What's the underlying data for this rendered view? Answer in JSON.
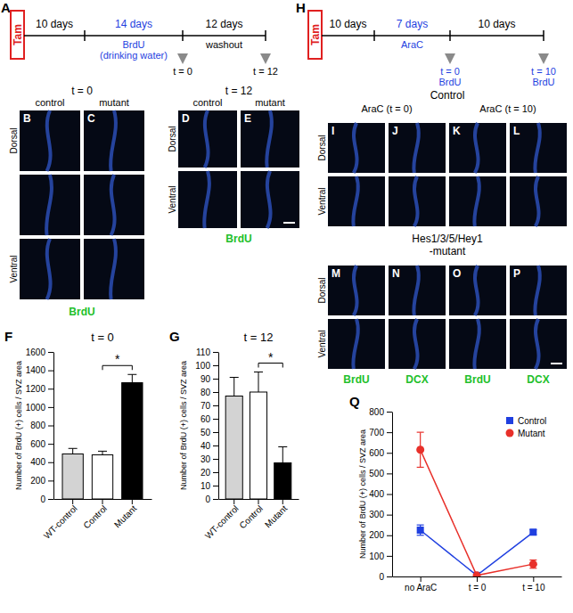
{
  "timelines": [
    {
      "label": "A",
      "start": "Tam",
      "segments": [
        {
          "text": "10 days",
          "color": "#000000"
        },
        {
          "text": "14 days",
          "color": "#1f3fe0",
          "lines": [
            "BrdU",
            "(drinking water)"
          ]
        },
        {
          "text": "12 days",
          "color": "#000000",
          "lines": [
            "washout"
          ]
        }
      ],
      "markers": [
        {
          "lines": [
            "t = 0"
          ],
          "color": "#000000"
        },
        {
          "lines": [
            "t = 12"
          ],
          "color": "#000000"
        }
      ]
    },
    {
      "label": "H",
      "start": "Tam",
      "segments": [
        {
          "text": "10 days",
          "color": "#000000"
        },
        {
          "text": "7 days",
          "color": "#1f3fe0",
          "lines": [
            "AraC"
          ]
        },
        {
          "text": "10 days",
          "color": "#000000"
        }
      ],
      "markers": [
        {
          "lines": [
            "t = 0",
            "BrdU"
          ],
          "color": "#1f3fe0"
        },
        {
          "lines": [
            "t = 10",
            "BrdU"
          ],
          "color": "#1f3fe0"
        }
      ]
    }
  ],
  "image_groups": [
    {
      "title": "t = 0",
      "columns": [
        "control",
        "mutant"
      ],
      "letters": [
        "B",
        "C"
      ],
      "rows": [
        "Dorsal",
        null,
        "Ventral"
      ],
      "stain": "BrdU"
    },
    {
      "title": "t = 12",
      "columns": [
        "control",
        "mutant"
      ],
      "letters": [
        "D",
        "E"
      ],
      "rows": [
        "Dorsal",
        "Ventral"
      ],
      "stain": "BrdU"
    },
    {
      "title": "Control",
      "subtitles": [
        "AraC (t = 0)",
        "AraC (t = 10)"
      ],
      "letters": [
        "I",
        "J",
        "K",
        "L"
      ],
      "rows": [
        "Dorsal",
        "Ventral"
      ]
    },
    {
      "title_lines": [
        "Hes1/3/5/Hey1",
        "-mutant"
      ],
      "letters": [
        "M",
        "N",
        "O",
        "P"
      ],
      "rows": [
        "Dorsal",
        "Ventral"
      ],
      "stains": [
        "BrdU",
        "DCX",
        "BrdU",
        "DCX"
      ]
    }
  ],
  "chart_data": [
    {
      "type": "bar",
      "label": "F",
      "title": "t = 0",
      "y_label": "Number of BrdU (+) cells / SVZ area",
      "categories": [
        "WT-control",
        "Control",
        "Mutant"
      ],
      "values": [
        490,
        480,
        1265
      ],
      "errors": [
        60,
        40,
        90
      ],
      "colors": [
        "#d3d3d3",
        "#ffffff",
        "#000000"
      ],
      "ylim": [
        0,
        1600
      ],
      "yticks": [
        0,
        200,
        400,
        600,
        800,
        1000,
        1200,
        1400,
        1600
      ],
      "annotations": [
        {
          "text": "*",
          "between": [
            "Control",
            "Mutant"
          ]
        }
      ]
    },
    {
      "type": "bar",
      "label": "G",
      "title": "t = 12",
      "y_label": "Number of BrdU (+) cells / SVZ area",
      "categories": [
        "WT-control",
        "Control",
        "Mutant"
      ],
      "values": [
        77,
        80,
        27
      ],
      "errors": [
        14,
        15,
        12
      ],
      "colors": [
        "#d3d3d3",
        "#ffffff",
        "#000000"
      ],
      "ylim": [
        0,
        110
      ],
      "yticks": [
        0,
        10,
        20,
        30,
        40,
        50,
        60,
        70,
        80,
        90,
        100,
        110
      ],
      "annotations": [
        {
          "text": "*",
          "between": [
            "Control",
            "Mutant"
          ]
        }
      ]
    },
    {
      "type": "line",
      "label": "Q",
      "y_label": "Number of BrdU (+) cells / SVZ area",
      "categories": [
        "no AraC",
        "t = 0",
        "t = 10"
      ],
      "series": [
        {
          "name": "Control",
          "color": "#1f3fe0",
          "marker": "square",
          "values": [
            225,
            5,
            215
          ],
          "errors": [
            25,
            2,
            12
          ]
        },
        {
          "name": "Mutant",
          "color": "#e8302a",
          "marker": "circle",
          "values": [
            615,
            5,
            60
          ],
          "errors": [
            85,
            2,
            20
          ]
        }
      ],
      "ylim": [
        0,
        800
      ],
      "yticks": [
        0,
        100,
        200,
        300,
        400,
        500,
        600,
        700,
        800
      ],
      "legend": "upper right"
    }
  ]
}
